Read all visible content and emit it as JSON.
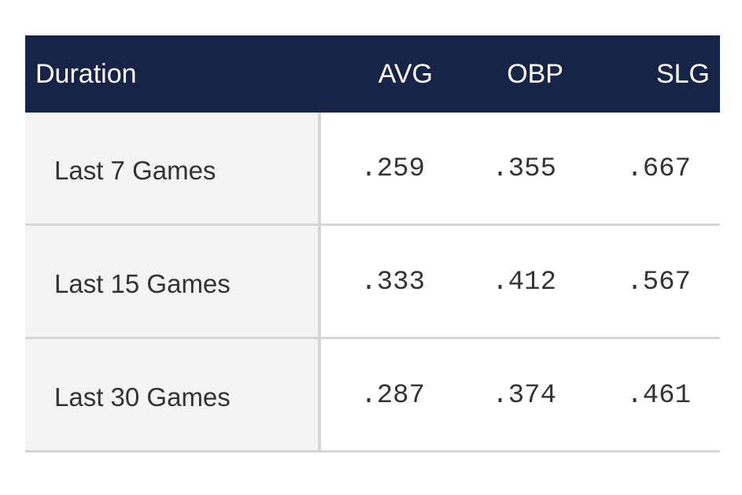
{
  "table": {
    "headers": {
      "duration": "Duration",
      "avg": "AVG",
      "obp": "OBP",
      "slg": "SLG"
    },
    "rows": [
      {
        "duration": "Last 7 Games",
        "avg": ".259",
        "obp": ".355",
        "slg": ".667"
      },
      {
        "duration": "Last 15 Games",
        "avg": ".333",
        "obp": ".412",
        "slg": ".567"
      },
      {
        "duration": "Last 30 Games",
        "avg": ".287",
        "obp": ".374",
        "slg": ".461"
      }
    ]
  },
  "colors": {
    "header_bg": "#172447",
    "header_text": "#ffffff",
    "duration_bg": "#f4f4f4",
    "divider": "#d6d6d6",
    "body_text": "#333333"
  }
}
